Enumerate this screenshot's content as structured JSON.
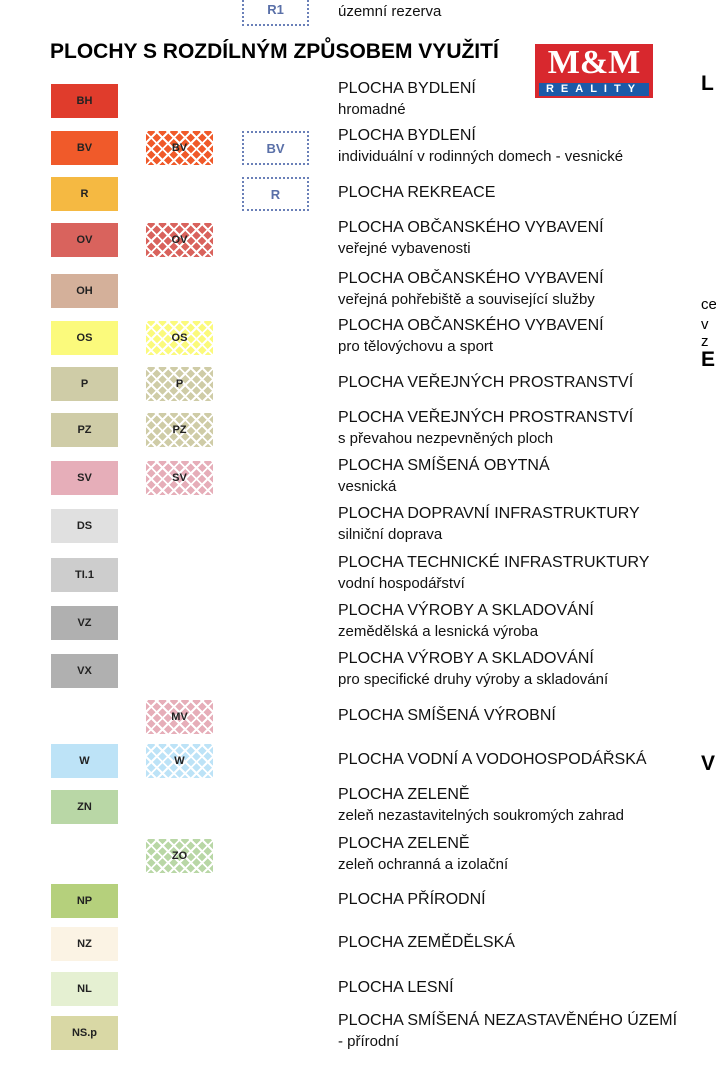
{
  "top_row": {
    "code": "R1",
    "text": "územní rezerva"
  },
  "title": "PLOCHY S ROZDÍLNÝM ZPŮSOBEM VYUŽITÍ",
  "logo": {
    "mark": "M&M",
    "sub": "REALITY"
  },
  "rows": [
    {
      "solid": "BH",
      "title": "PLOCHA BYDLENÍ",
      "subtitle": "hromadné",
      "color": "#e03c2c"
    },
    {
      "solid": "BV",
      "hatch": "BV",
      "dashed": "BV",
      "title": "PLOCHA BYDLENÍ",
      "subtitle": "individuální v rodinných domech - vesnické",
      "color": "#f05a2a"
    },
    {
      "solid": "R",
      "dashed": "R",
      "title": "PLOCHA REKREACE",
      "color": "#f5b942"
    },
    {
      "solid": "OV",
      "hatch": "OV",
      "title": "PLOCHA OBČANSKÉHO VYBAVENÍ",
      "subtitle": "veřejné vybavenosti",
      "color": "#d9635d"
    },
    {
      "solid": "OH",
      "title": "PLOCHA OBČANSKÉHO VYBAVENÍ",
      "subtitle": "veřejná pohřebiště a související služby",
      "color": "#d4b09a"
    },
    {
      "solid": "OS",
      "hatch": "OS",
      "title": "PLOCHA OBČANSKÉHO VYBAVENÍ",
      "subtitle": "pro tělovýchovu a sport",
      "color": "#fbfa7c"
    },
    {
      "solid": "P",
      "hatch": "P",
      "title": "PLOCHA VEŘEJNÝCH PROSTRANSTVÍ",
      "color": "#cfcca7"
    },
    {
      "solid": "PZ",
      "hatch": "PZ",
      "title": "PLOCHA VEŘEJNÝCH PROSTRANSTVÍ",
      "subtitle": "s převahou nezpevněných ploch",
      "color": "#cfcca7"
    },
    {
      "solid": "SV",
      "hatch": "SV",
      "title": "PLOCHA SMÍŠENÁ OBYTNÁ",
      "subtitle": "vesnická",
      "color": "#e6aeb9"
    },
    {
      "solid": "DS",
      "title": "PLOCHA DOPRAVNÍ INFRASTRUKTURY",
      "subtitle": "silniční doprava",
      "color": "#e0e0e0"
    },
    {
      "solid": "TI.1",
      "title": "PLOCHA TECHNICKÉ INFRASTRUKTURY",
      "subtitle": "vodní hospodářství",
      "color": "#cdcdcd"
    },
    {
      "solid": "VZ",
      "title": "PLOCHA VÝROBY A SKLADOVÁNÍ",
      "subtitle": "zemědělská a lesnická výroba",
      "color": "#b0b0b0"
    },
    {
      "solid": "VX",
      "title": "PLOCHA VÝROBY A SKLADOVÁNÍ",
      "subtitle": "pro specifické druhy výroby a skladování",
      "color": "#b0b0b0"
    },
    {
      "hatch": "MV",
      "title": "PLOCHA SMÍŠENÁ VÝROBNÍ",
      "color": "#e6aeb9"
    },
    {
      "solid": "W",
      "hatch": "W",
      "title": "PLOCHA VODNÍ A VODOHOSPODÁŘSKÁ",
      "color": "#bde3f7"
    },
    {
      "solid": "ZN",
      "title": "PLOCHA ZELENĚ",
      "subtitle": "zeleň nezastavitelných soukromých zahrad",
      "color": "#b9d7a6"
    },
    {
      "hatch": "ZO",
      "title": "PLOCHA ZELENĚ",
      "subtitle": "zeleň ochranná a izolační",
      "color": "#b9d7a6"
    },
    {
      "solid": "NP",
      "title": "PLOCHA PŘÍRODNÍ",
      "color": "#b5d07c"
    },
    {
      "solid": "NZ",
      "title": "PLOCHA ZEMĚDĚLSKÁ",
      "color": "#fbf3e4"
    },
    {
      "solid": "NL",
      "title": "PLOCHA LESNÍ",
      "color": "#e5f0d2"
    },
    {
      "solid": "NS.p",
      "title": "PLOCHA SMÍŠENÁ NEZASTAVĚNÉHO ÚZEMÍ",
      "subtitle": "- přírodní",
      "color": "#d9d8a5"
    }
  ],
  "right_fragments": [
    "L",
    "ce",
    "v z",
    "E",
    "V"
  ]
}
